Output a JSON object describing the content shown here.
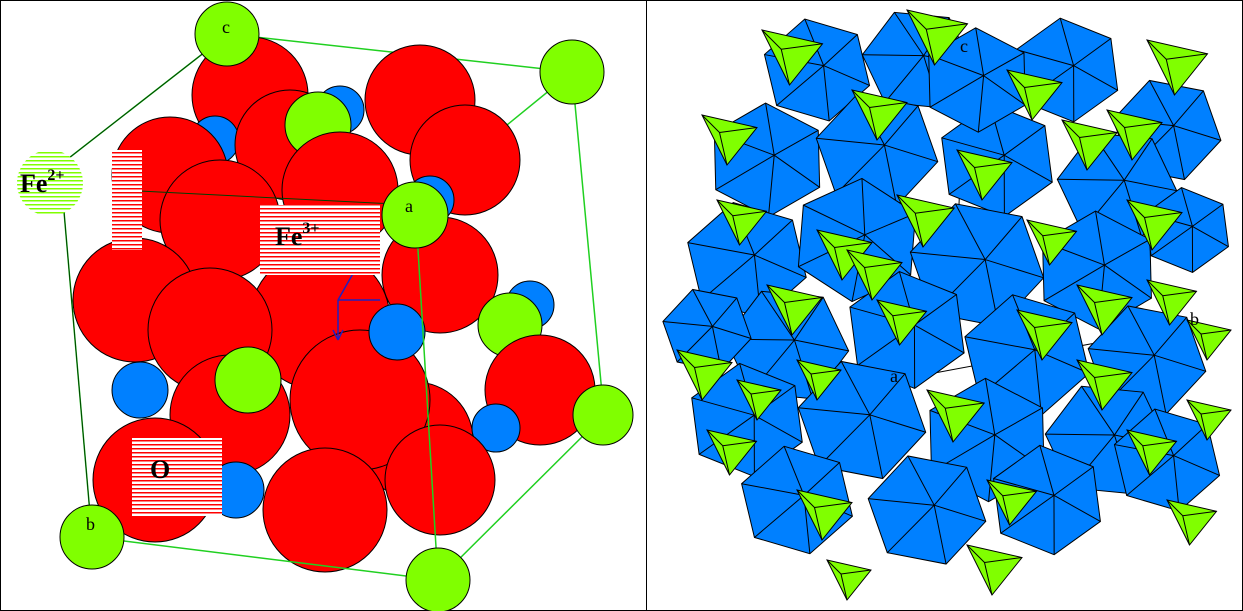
{
  "colors": {
    "oxygen": "#ff0000",
    "fe3": "#0080ff",
    "fe2": "#80ff00",
    "cell_edge": "#20d020",
    "outline": "#000000"
  },
  "left_panel": {
    "axis_labels": {
      "a": "a",
      "b": "b",
      "c": "c"
    },
    "ion_labels": {
      "fe2": {
        "element": "Fe",
        "charge": "2+"
      },
      "fe3": {
        "element": "Fe",
        "charge": "3+"
      },
      "o": {
        "element": "O"
      }
    }
  },
  "right_panel": {
    "axis_labels": {
      "a": "a",
      "b": "b",
      "c": "c"
    }
  }
}
